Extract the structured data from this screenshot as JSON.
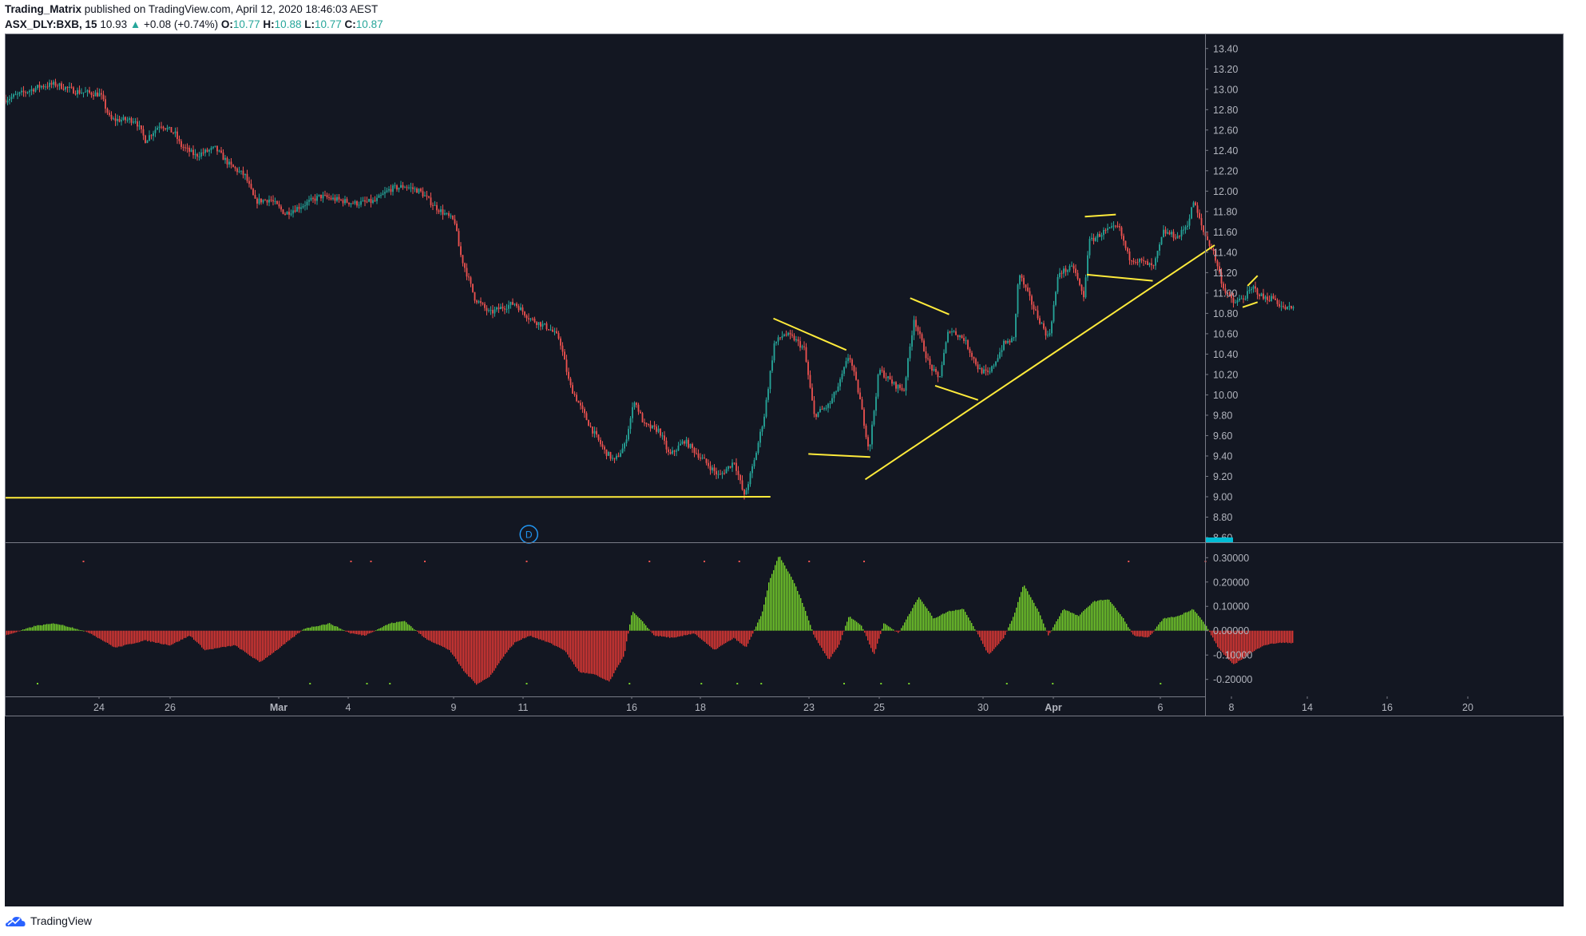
{
  "header": {
    "publisher": "Trading_Matrix",
    "published_text": "published on TradingView.com, April 12, 2020 18:46:03 AEST",
    "symbol": "ASX_DLY:BXB, 15",
    "last_price": "10.93",
    "change": "+0.08 (+0.74%)",
    "open_label": "O:",
    "open": "10.77",
    "high_label": "H:",
    "high": "10.88",
    "low_label": "L:",
    "low": "10.77",
    "close_label": "C:",
    "close": "10.87"
  },
  "footer": {
    "brand": "TradingView",
    "logo_icon": "tradingview-cloud-icon"
  },
  "colors": {
    "background": "#131722",
    "up": "#26a69a",
    "down": "#ef5350",
    "drawing": "#ffeb3b",
    "hist_pos": "#76d12b",
    "hist_neg": "#e53935",
    "axis_text": "#b2b5be",
    "price_marker": "#00bcd4"
  },
  "chart_data": [
    {
      "type": "candlestick",
      "name": "ASX_DLY:BXB, 15",
      "ylim": [
        8.6,
        13.5
      ],
      "y_ticks": [
        "13.40",
        "13.20",
        "13.00",
        "12.80",
        "12.60",
        "12.40",
        "12.20",
        "12.00",
        "11.80",
        "11.60",
        "11.40",
        "11.20",
        "11.00",
        "10.80",
        "10.60",
        "10.40",
        "10.20",
        "10.00",
        "9.80",
        "9.60",
        "9.40",
        "9.20",
        "9.00",
        "8.80",
        "8.60"
      ],
      "x_ticks": [
        {
          "label": "24",
          "bold": false
        },
        {
          "label": "26",
          "bold": false
        },
        {
          "label": "Mar",
          "bold": true
        },
        {
          "label": "4",
          "bold": false
        },
        {
          "label": "9",
          "bold": false
        },
        {
          "label": "11",
          "bold": false
        },
        {
          "label": "16",
          "bold": false
        },
        {
          "label": "18",
          "bold": false
        },
        {
          "label": "23",
          "bold": false
        },
        {
          "label": "25",
          "bold": false
        },
        {
          "label": "30",
          "bold": false
        },
        {
          "label": "Apr",
          "bold": true
        },
        {
          "label": "6",
          "bold": false
        },
        {
          "label": "8",
          "bold": false
        },
        {
          "label": "14",
          "bold": false
        },
        {
          "label": "16",
          "bold": false
        },
        {
          "label": "20",
          "bold": false
        }
      ],
      "price_path": [
        [
          0,
          12.9
        ],
        [
          35,
          13.03
        ],
        [
          50,
          13.05
        ],
        [
          70,
          12.98
        ],
        [
          95,
          12.95
        ],
        [
          105,
          12.7
        ],
        [
          130,
          12.7
        ],
        [
          140,
          12.5
        ],
        [
          155,
          12.66
        ],
        [
          170,
          12.56
        ],
        [
          175,
          12.45
        ],
        [
          190,
          12.35
        ],
        [
          210,
          12.42
        ],
        [
          225,
          12.25
        ],
        [
          240,
          12.15
        ],
        [
          250,
          11.9
        ],
        [
          265,
          11.92
        ],
        [
          280,
          11.78
        ],
        [
          295,
          11.85
        ],
        [
          315,
          11.95
        ],
        [
          330,
          11.92
        ],
        [
          350,
          11.88
        ],
        [
          370,
          11.9
        ],
        [
          385,
          12.02
        ],
        [
          400,
          12.05
        ],
        [
          415,
          12.0
        ],
        [
          430,
          11.85
        ],
        [
          450,
          11.7
        ],
        [
          455,
          11.4
        ],
        [
          470,
          10.95
        ],
        [
          485,
          10.8
        ],
        [
          495,
          10.85
        ],
        [
          510,
          10.9
        ],
        [
          525,
          10.75
        ],
        [
          545,
          10.65
        ],
        [
          555,
          10.55
        ],
        [
          565,
          10.1
        ],
        [
          575,
          9.9
        ],
        [
          585,
          9.7
        ],
        [
          600,
          9.45
        ],
        [
          610,
          9.35
        ],
        [
          620,
          9.5
        ],
        [
          630,
          9.95
        ],
        [
          640,
          9.7
        ],
        [
          655,
          9.65
        ],
        [
          665,
          9.4
        ],
        [
          680,
          9.55
        ],
        [
          700,
          9.35
        ],
        [
          715,
          9.2
        ],
        [
          730,
          9.35
        ],
        [
          740,
          9.0
        ],
        [
          750,
          9.35
        ],
        [
          760,
          9.8
        ],
        [
          770,
          10.5
        ],
        [
          780,
          10.6
        ],
        [
          790,
          10.55
        ],
        [
          800,
          10.45
        ],
        [
          810,
          9.8
        ],
        [
          825,
          9.9
        ],
        [
          835,
          10.1
        ],
        [
          845,
          10.4
        ],
        [
          855,
          10.0
        ],
        [
          865,
          9.45
        ],
        [
          875,
          10.25
        ],
        [
          890,
          10.1
        ],
        [
          900,
          10.05
        ],
        [
          910,
          10.75
        ],
        [
          925,
          10.3
        ],
        [
          935,
          10.15
        ],
        [
          945,
          10.65
        ],
        [
          960,
          10.55
        ],
        [
          975,
          10.25
        ],
        [
          985,
          10.2
        ],
        [
          1000,
          10.5
        ],
        [
          1010,
          10.55
        ],
        [
          1015,
          11.2
        ],
        [
          1030,
          10.85
        ],
        [
          1045,
          10.55
        ],
        [
          1055,
          11.2
        ],
        [
          1070,
          11.25
        ],
        [
          1080,
          10.95
        ],
        [
          1085,
          11.5
        ],
        [
          1100,
          11.6
        ],
        [
          1115,
          11.65
        ],
        [
          1125,
          11.35
        ],
        [
          1140,
          11.3
        ],
        [
          1150,
          11.25
        ],
        [
          1160,
          11.6
        ],
        [
          1175,
          11.55
        ],
        [
          1185,
          11.7
        ],
        [
          1190,
          11.9
        ],
        [
          1200,
          11.6
        ],
        [
          1210,
          11.4
        ],
        [
          1220,
          11.05
        ],
        [
          1230,
          10.9
        ],
        [
          1240,
          10.95
        ],
        [
          1250,
          11.05
        ],
        [
          1260,
          10.95
        ],
        [
          1270,
          10.95
        ],
        [
          1280,
          10.85
        ],
        [
          1290,
          10.85
        ]
      ],
      "drawings": [
        {
          "name": "support-line",
          "points": [
            [
              0,
              8.99
            ],
            [
              767,
              9.0
            ]
          ]
        },
        {
          "name": "ascending-trendline",
          "points": [
            [
              862,
              9.17
            ],
            [
              1212,
              11.47
            ]
          ]
        },
        {
          "name": "wedge-upper-1",
          "points": [
            [
              770,
              10.75
            ],
            [
              843,
              10.44
            ]
          ]
        },
        {
          "name": "wedge-lower-1",
          "points": [
            [
              805,
              9.42
            ],
            [
              867,
              9.39
            ]
          ]
        },
        {
          "name": "wedge-upper-2",
          "points": [
            [
              907,
              10.95
            ],
            [
              946,
              10.79
            ]
          ]
        },
        {
          "name": "wedge-lower-2",
          "points": [
            [
              932,
              10.09
            ],
            [
              975,
              9.95
            ]
          ]
        },
        {
          "name": "channel-upper-3",
          "points": [
            [
              1082,
              11.75
            ],
            [
              1113,
              11.77
            ]
          ]
        },
        {
          "name": "channel-lower-3",
          "points": [
            [
              1084,
              11.18
            ],
            [
              1150,
              11.12
            ]
          ]
        },
        {
          "name": "flag-upper-4",
          "points": [
            [
              1245,
              11.07
            ],
            [
              1255,
              11.17
            ]
          ]
        },
        {
          "name": "flag-lower-4",
          "points": [
            [
              1240,
              10.86
            ],
            [
              1255,
              10.91
            ]
          ]
        }
      ],
      "event_marker": {
        "label": "D",
        "x": 525
      }
    },
    {
      "type": "histogram",
      "name": "oscillator",
      "ylim": [
        -0.27,
        0.36
      ],
      "y_ticks": [
        "0.30000",
        "0.20000",
        "0.10000",
        "0.00000",
        "-0.10000",
        "-0.20000"
      ],
      "path": [
        [
          0,
          -0.02
        ],
        [
          30,
          0.02
        ],
        [
          50,
          0.03
        ],
        [
          70,
          0.01
        ],
        [
          85,
          -0.01
        ],
        [
          110,
          -0.07
        ],
        [
          140,
          -0.04
        ],
        [
          165,
          -0.06
        ],
        [
          185,
          -0.02
        ],
        [
          200,
          -0.08
        ],
        [
          230,
          -0.06
        ],
        [
          255,
          -0.13
        ],
        [
          275,
          -0.07
        ],
        [
          300,
          0.01
        ],
        [
          325,
          0.03
        ],
        [
          345,
          -0.01
        ],
        [
          360,
          -0.02
        ],
        [
          385,
          0.03
        ],
        [
          400,
          0.04
        ],
        [
          420,
          -0.03
        ],
        [
          445,
          -0.08
        ],
        [
          460,
          -0.17
        ],
        [
          472,
          -0.22
        ],
        [
          485,
          -0.19
        ],
        [
          500,
          -0.1
        ],
        [
          510,
          -0.05
        ],
        [
          525,
          -0.02
        ],
        [
          545,
          -0.05
        ],
        [
          560,
          -0.08
        ],
        [
          575,
          -0.17
        ],
        [
          590,
          -0.18
        ],
        [
          605,
          -0.21
        ],
        [
          620,
          -0.1
        ],
        [
          628,
          0.08
        ],
        [
          640,
          0.03
        ],
        [
          650,
          -0.02
        ],
        [
          670,
          -0.03
        ],
        [
          690,
          -0.01
        ],
        [
          710,
          -0.08
        ],
        [
          730,
          -0.03
        ],
        [
          742,
          -0.07
        ],
        [
          758,
          0.07
        ],
        [
          765,
          0.2
        ],
        [
          775,
          0.31
        ],
        [
          790,
          0.2
        ],
        [
          800,
          0.1
        ],
        [
          810,
          -0.02
        ],
        [
          825,
          -0.12
        ],
        [
          835,
          -0.06
        ],
        [
          845,
          0.06
        ],
        [
          858,
          0.02
        ],
        [
          870,
          -0.1
        ],
        [
          880,
          0.03
        ],
        [
          895,
          -0.01
        ],
        [
          915,
          0.14
        ],
        [
          930,
          0.05
        ],
        [
          945,
          0.08
        ],
        [
          960,
          0.09
        ],
        [
          975,
          -0.02
        ],
        [
          985,
          -0.1
        ],
        [
          1000,
          -0.03
        ],
        [
          1010,
          0.06
        ],
        [
          1020,
          0.19
        ],
        [
          1035,
          0.08
        ],
        [
          1045,
          -0.02
        ],
        [
          1060,
          0.09
        ],
        [
          1075,
          0.06
        ],
        [
          1090,
          0.12
        ],
        [
          1105,
          0.13
        ],
        [
          1120,
          0.05
        ],
        [
          1130,
          -0.02
        ],
        [
          1145,
          -0.03
        ],
        [
          1160,
          0.05
        ],
        [
          1175,
          0.06
        ],
        [
          1190,
          0.09
        ],
        [
          1203,
          0.02
        ],
        [
          1215,
          -0.07
        ],
        [
          1230,
          -0.14
        ],
        [
          1245,
          -0.1
        ],
        [
          1260,
          -0.06
        ],
        [
          1275,
          -0.05
        ],
        [
          1290,
          -0.05
        ]
      ],
      "red_dots_x": [
        78,
        346,
        366,
        420,
        522,
        645,
        700,
        735,
        805,
        860,
        1125,
        1202
      ],
      "green_dots_x": [
        32,
        305,
        362,
        385,
        522,
        625,
        697,
        733,
        757,
        840,
        877,
        905,
        1003,
        1049,
        1157
      ]
    }
  ]
}
